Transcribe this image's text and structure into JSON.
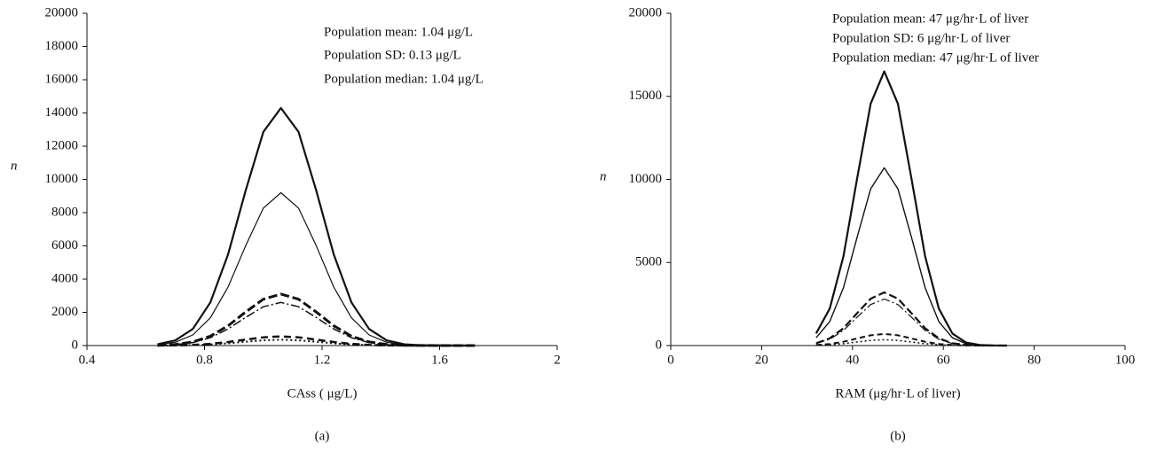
{
  "chart_data": [
    {
      "type": "line",
      "panel_label": "(a)",
      "xlabel": "CAss ( μg/L)",
      "ylabel": "n",
      "annotations": [
        "Population mean: 1.04 μg/L",
        "Population SD: 0.13 μg/L",
        "Population median: 1.04 μg/L"
      ],
      "xlim": [
        0.4,
        2
      ],
      "xticks": [
        0.4,
        0.8,
        1.2,
        1.6,
        2
      ],
      "ylim": [
        0,
        20000
      ],
      "yticks": [
        0,
        2000,
        4000,
        6000,
        8000,
        10000,
        12000,
        14000,
        16000,
        18000,
        20000
      ],
      "grid": false,
      "x": [
        0.64,
        0.7,
        0.76,
        0.82,
        0.88,
        0.94,
        1.0,
        1.06,
        1.12,
        1.18,
        1.24,
        1.3,
        1.36,
        1.42,
        1.48,
        1.54,
        1.6,
        1.66,
        1.72
      ],
      "series": [
        {
          "color": "#111111",
          "width": 2.2,
          "dash": "none",
          "values": [
            77,
            310,
            1000,
            2600,
            5480,
            9340,
            12860,
            14300,
            12860,
            9340,
            5480,
            2600,
            1000,
            310,
            77,
            16,
            3,
            0,
            0
          ]
        },
        {
          "color": "#111111",
          "width": 1.2,
          "dash": "none",
          "values": [
            50,
            200,
            640,
            1670,
            3520,
            6010,
            8270,
            9200,
            8270,
            6010,
            3520,
            1670,
            640,
            200,
            50,
            10,
            2,
            0,
            0
          ]
        },
        {
          "color": "#111111",
          "width": 3,
          "dash": "10,4",
          "values": [
            17,
            67,
            217,
            564,
            1187,
            2024,
            2787,
            3100,
            2787,
            2024,
            1187,
            564,
            217,
            67,
            17,
            3,
            1,
            0,
            0
          ]
        },
        {
          "color": "#111111",
          "width": 1.5,
          "dash": "10,3,2,3",
          "values": [
            14,
            56,
            182,
            473,
            996,
            1698,
            2337,
            2600,
            2337,
            1698,
            996,
            473,
            182,
            56,
            14,
            3,
            1,
            0,
            0
          ]
        },
        {
          "color": "#111111",
          "width": 2.5,
          "dash": "8,5",
          "values": [
            3,
            12,
            39,
            100,
            211,
            359,
            494,
            550,
            494,
            359,
            211,
            100,
            39,
            12,
            3,
            1,
            0,
            0,
            0
          ]
        },
        {
          "color": "#111111",
          "width": 2,
          "dash": "2,3",
          "values": [
            2,
            8,
            25,
            64,
            134,
            229,
            315,
            350,
            315,
            229,
            134,
            64,
            25,
            8,
            2,
            0,
            0,
            0,
            0
          ]
        }
      ]
    },
    {
      "type": "line",
      "panel_label": "(b)",
      "xlabel": "RAM (μg/hr·L of liver)",
      "ylabel": "n",
      "annotations": [
        "Population mean: 47 μg/hr·L of liver",
        "Population SD:  6 μg/hr·L of liver",
        "Population median: 47 μg/hr·L of liver"
      ],
      "xlim": [
        0,
        100
      ],
      "xticks": [
        0,
        20,
        40,
        60,
        80,
        100
      ],
      "ylim": [
        0,
        20000
      ],
      "yticks": [
        0,
        5000,
        10000,
        15000,
        20000
      ],
      "grid": false,
      "x": [
        32,
        35,
        38,
        41,
        44,
        47,
        50,
        53,
        56,
        59,
        62,
        65,
        68,
        71,
        74
      ],
      "series": [
        {
          "color": "#111111",
          "width": 2.2,
          "dash": "none",
          "values": [
            726,
            2228,
            5363,
            10016,
            14553,
            16500,
            14553,
            10016,
            5363,
            2228,
            726,
            182,
            36,
            5,
            0
          ]
        },
        {
          "color": "#111111",
          "width": 1.4,
          "dash": "none",
          "values": [
            471,
            1445,
            3478,
            6495,
            9437,
            10700,
            9437,
            6495,
            3478,
            1445,
            471,
            118,
            24,
            3,
            0
          ]
        },
        {
          "color": "#111111",
          "width": 2.2,
          "dash": "9,4",
          "values": [
            141,
            432,
            1040,
            1942,
            2822,
            3200,
            2822,
            1942,
            1040,
            432,
            141,
            35,
            7,
            1,
            0
          ]
        },
        {
          "color": "#111111",
          "width": 1.2,
          "dash": "10,3,2,3",
          "values": [
            123,
            378,
            910,
            1700,
            2470,
            2800,
            2470,
            1700,
            910,
            378,
            123,
            31,
            6,
            1,
            0
          ]
        },
        {
          "color": "#111111",
          "width": 2,
          "dash": "6,4",
          "values": [
            31,
            95,
            228,
            425,
            617,
            700,
            617,
            425,
            228,
            95,
            31,
            8,
            2,
            0,
            0
          ]
        },
        {
          "color": "#111111",
          "width": 1.5,
          "dash": "2,3",
          "values": [
            15,
            47,
            114,
            212,
            309,
            350,
            309,
            212,
            114,
            47,
            15,
            4,
            1,
            0,
            0
          ]
        }
      ]
    }
  ]
}
